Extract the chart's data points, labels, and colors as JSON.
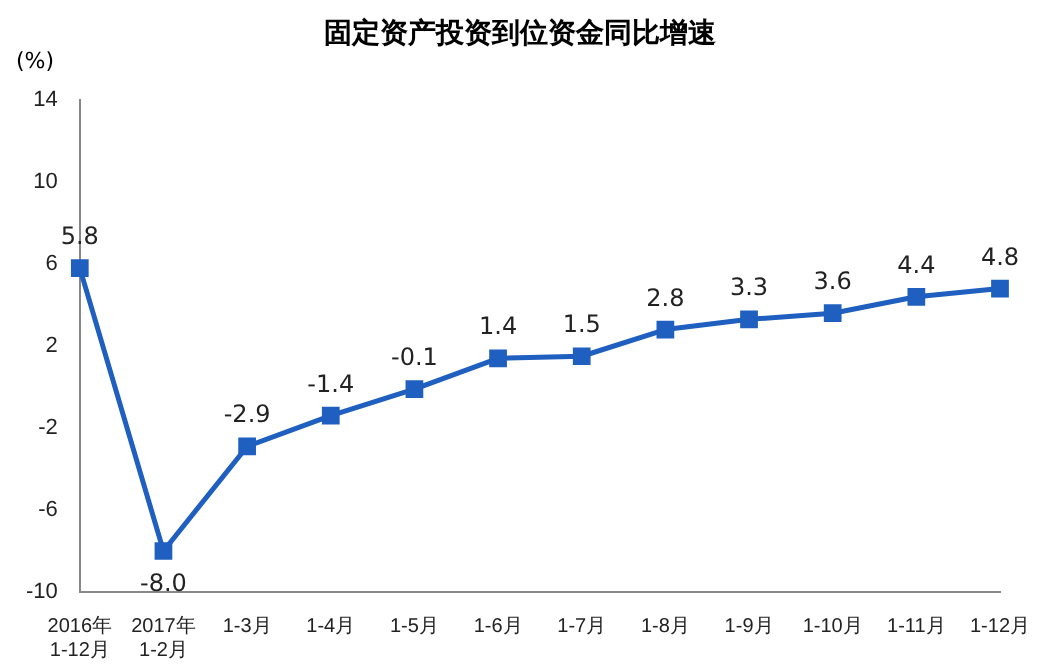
{
  "chart_data": {
    "type": "line",
    "title": "固定资产投资到位资金同比增速",
    "ylabel": "(%)",
    "categories": [
      "2016年\n1-12月",
      "2017年\n1-2月",
      "1-3月",
      "1-4月",
      "1-5月",
      "1-6月",
      "1-7月",
      "1-8月",
      "1-9月",
      "1-10月",
      "1-11月",
      "1-12月"
    ],
    "series": [
      {
        "color": "#1f5fbf",
        "values": [
          5.8,
          -8.0,
          -2.9,
          -1.4,
          -0.1,
          1.4,
          1.5,
          2.8,
          3.3,
          3.6,
          4.4,
          4.8
        ],
        "value_labels": [
          "5.8",
          "-8.0",
          "-2.9",
          "-1.4",
          "-0.1",
          "1.4",
          "1.5",
          "2.8",
          "3.3",
          "3.6",
          "4.4",
          "4.8"
        ]
      }
    ],
    "ylim": [
      -10,
      14
    ],
    "yticks": [
      -10,
      -6,
      -2,
      2,
      6,
      10,
      14
    ],
    "grid": false,
    "legend": false,
    "marker": "square",
    "line_style": "solid"
  }
}
